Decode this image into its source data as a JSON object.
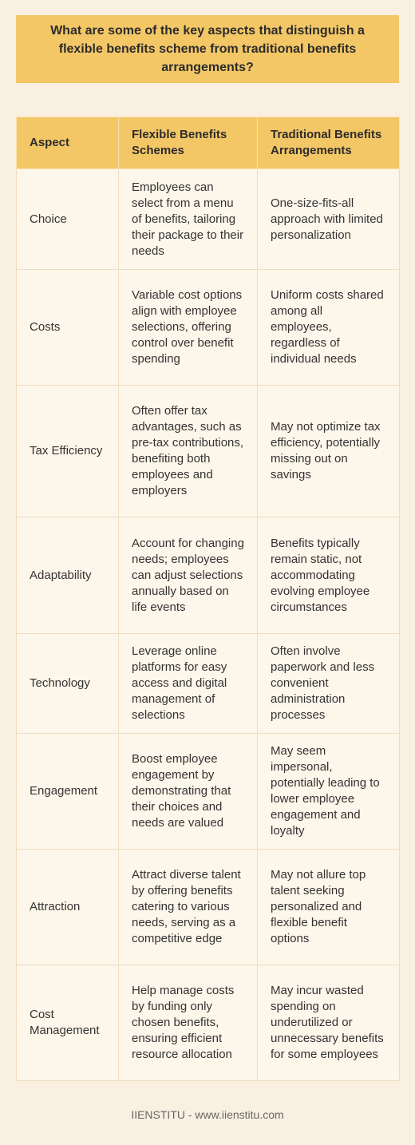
{
  "title": "What are some of the key aspects that distinguish a flexible benefits scheme from traditional benefits arrangements?",
  "table": {
    "headers": [
      "Aspect",
      "Flexible Benefits Schemes",
      "Traditional Benefits Arrangements"
    ],
    "rows": [
      {
        "aspect": "Choice",
        "flexible": "Employees can select from a menu of benefits, tailoring their package to their needs",
        "traditional": "One-size-fits-all approach with limited personalization"
      },
      {
        "aspect": "Costs",
        "flexible": "Variable cost options align with employee selections, offering control over benefit spending",
        "traditional": "Uniform costs shared among all employees, regardless of individual needs"
      },
      {
        "aspect": "Tax Efficiency",
        "flexible": "Often offer tax advantages, such as pre-tax contributions, benefiting both employees and employers",
        "traditional": "May not optimize tax efficiency, potentially missing out on savings"
      },
      {
        "aspect": "Adaptability",
        "flexible": "Account for changing needs; employees can adjust selections annually based on life events",
        "traditional": "Benefits typically remain static, not accommodating evolving employee circumstances"
      },
      {
        "aspect": "Technology",
        "flexible": "Leverage online platforms for easy access and digital management of selections",
        "traditional": "Often involve paperwork and less convenient administration processes"
      },
      {
        "aspect": "Engagement",
        "flexible": "Boost employee engagement by demonstrating that their choices and needs are valued",
        "traditional": "May seem impersonal, potentially leading to lower employee engagement and loyalty"
      },
      {
        "aspect": "Attraction",
        "flexible": "Attract diverse talent by offering benefits catering to various needs, serving as a competitive edge",
        "traditional": "May not allure top talent seeking personalized and flexible benefit options"
      },
      {
        "aspect": "Cost Management",
        "flexible": "Help manage costs by funding only chosen benefits, ensuring efficient resource allocation",
        "traditional": "May incur wasted spending on underutilized or unnecessary benefits for some employees"
      }
    ]
  },
  "footer": "IIENSTITU - www.iienstitu.com"
}
